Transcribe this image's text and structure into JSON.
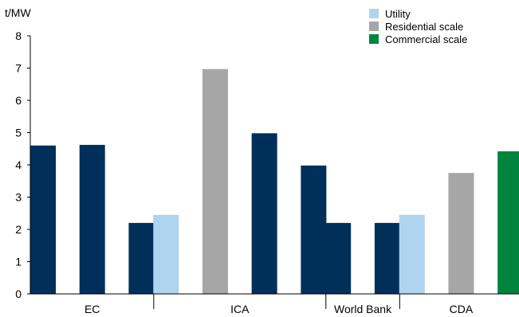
{
  "chart_data": {
    "type": "bar",
    "ylabel": "t/MW",
    "ylim": [
      0,
      8
    ],
    "yticks": [
      0,
      1,
      2,
      3,
      4,
      5,
      6,
      7,
      8
    ],
    "grid": false,
    "legend_position": "top-right",
    "legend": [
      {
        "key": "utility",
        "label": "Utility",
        "color": "#aed4ef"
      },
      {
        "key": "residential",
        "label": "Residential scale",
        "color": "#a6a6a6"
      },
      {
        "key": "commercial",
        "label": "Commercial scale",
        "color": "#00843d"
      }
    ],
    "default_bar_color": "#00305a",
    "groups": [
      {
        "label": "EC",
        "bars": [
          {
            "value": 4.6,
            "series": null
          },
          {
            "value": 4.62,
            "series": null
          },
          {
            "value": 2.2,
            "series": null
          }
        ]
      },
      {
        "label": "ICA",
        "bars": [
          {
            "value": 2.45,
            "series": "utility"
          },
          {
            "value": 6.97,
            "series": "residential"
          },
          {
            "value": 4.98,
            "series": null
          },
          {
            "value": 3.98,
            "series": null
          }
        ]
      },
      {
        "label": "World Bank",
        "bars": [
          {
            "value": 2.2,
            "series": null
          },
          {
            "value": 2.2,
            "series": null
          }
        ]
      },
      {
        "label": "CDA",
        "bars": [
          {
            "value": 2.45,
            "series": "utility"
          },
          {
            "value": 3.75,
            "series": "residential"
          },
          {
            "value": 4.42,
            "series": "commercial"
          }
        ]
      }
    ]
  }
}
